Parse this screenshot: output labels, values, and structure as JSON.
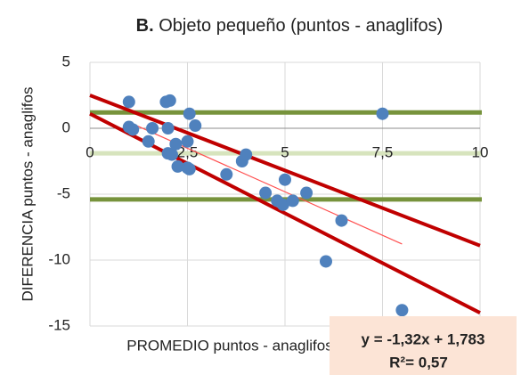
{
  "chart_data": {
    "type": "scatter",
    "title": [
      "B.",
      "Objeto pequeño (puntos - anaglifos)"
    ],
    "xlabel": "PROMEDIO puntos - anaglifos",
    "ylabel": "DIFERENCIA puntos - anaglifos",
    "xlim": [
      0,
      10
    ],
    "ylim": [
      -15,
      5
    ],
    "xticks": [
      0,
      {
        "value": 2.5,
        "label": "2,5"
      },
      5,
      {
        "value": 7.5,
        "label": "7,5"
      },
      10
    ],
    "yticks": [
      -15,
      -10,
      -5,
      0,
      5
    ],
    "grid": true,
    "series": [
      {
        "color": "#4f81bd",
        "x": [
          1.0,
          1.0,
          1.1,
          1.5,
          1.6,
          1.95,
          2.05,
          2.0,
          2.0,
          2.1,
          2.2,
          2.25,
          2.5,
          2.55,
          2.5,
          2.55,
          2.7,
          3.5,
          3.9,
          4.0,
          4.5,
          4.8,
          4.95,
          5.0,
          5.2,
          5.55,
          6.45,
          6.05,
          7.5,
          8.0
        ],
        "values": [
          2.0,
          0.1,
          -0.1,
          -1.0,
          0.0,
          2.0,
          2.1,
          0.0,
          -1.9,
          -2.0,
          -1.2,
          -2.9,
          -1.0,
          1.1,
          -3.0,
          -3.1,
          0.2,
          -3.5,
          -2.5,
          -2.0,
          -4.9,
          -5.5,
          -5.8,
          -3.9,
          -5.5,
          -4.9,
          -7.0,
          -10.1,
          1.1,
          -13.8
        ]
      }
    ],
    "hlines": [
      {
        "value": 1.2,
        "color": "#77933c"
      },
      {
        "value": -1.9,
        "color": "#d7e4bd"
      },
      {
        "value": -5.4,
        "color": "#77933c"
      }
    ],
    "lines": [
      {
        "color": "#c00000",
        "width": 4,
        "x": [
          0,
          10
        ],
        "values": [
          2.5,
          -8.9
        ]
      },
      {
        "color": "#c00000",
        "width": 4,
        "x": [
          0,
          10
        ],
        "values": [
          1.1,
          -14.0
        ]
      },
      {
        "color": "#ff5050",
        "width": 1.2,
        "x": [
          1,
          8
        ],
        "values": [
          0.46,
          -8.78
        ]
      }
    ],
    "annotations": [
      "y = -1,32x + 1,783",
      "R²= 0,57"
    ]
  }
}
